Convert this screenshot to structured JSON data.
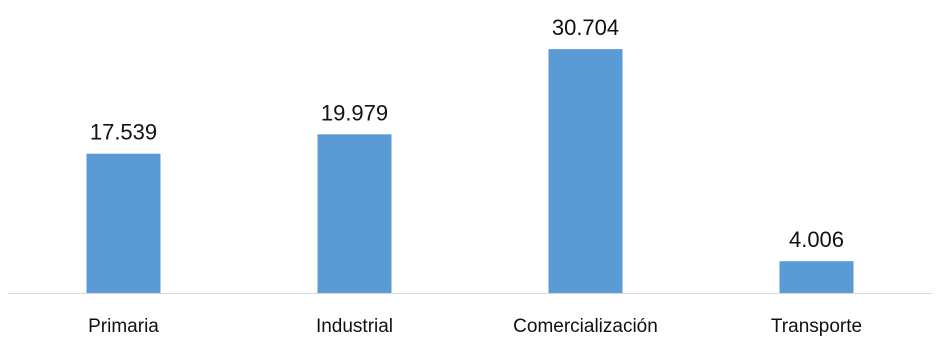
{
  "chart_data": {
    "type": "bar",
    "categories": [
      "Primaria",
      "Industrial",
      "Comercialización",
      "Transporte"
    ],
    "values": [
      17.539,
      19.979,
      30.704,
      4.006
    ],
    "data_labels": [
      "17.539",
      "19.979",
      "30.704",
      "4.006"
    ],
    "ylim": [
      0,
      35
    ],
    "grid": false,
    "legend": "none",
    "bar_color": "#5b9bd5"
  }
}
